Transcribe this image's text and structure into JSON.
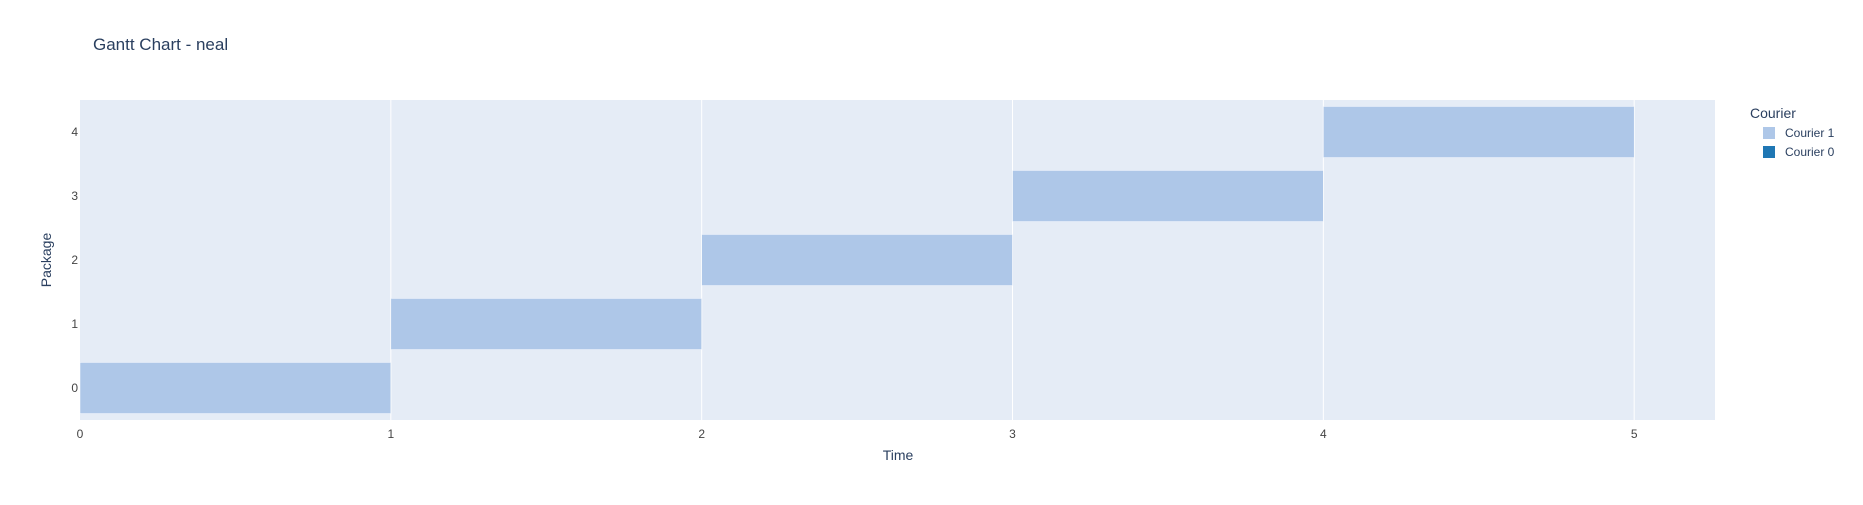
{
  "chart_data": {
    "type": "bar",
    "orientation": "horizontal",
    "title": "Gantt Chart - neal",
    "xlabel": "Time",
    "ylabel": "Package",
    "xlim": [
      0,
      5.26
    ],
    "ylim": [
      -0.5,
      4.5
    ],
    "x_ticks": [
      0,
      1,
      2,
      3,
      4,
      5
    ],
    "y_ticks": [
      0,
      1,
      2,
      3,
      4
    ],
    "grid": true,
    "legend": {
      "title": "Courier",
      "placement": "right",
      "entries": [
        {
          "name": "Courier 1",
          "color": "#aec7e8"
        },
        {
          "name": "Courier 0",
          "color": "#1f77b4"
        }
      ]
    },
    "series": [
      {
        "name": "Courier 1",
        "color": "#aec7e8",
        "tasks": [
          {
            "package": 0,
            "start": 0,
            "end": 1
          },
          {
            "package": 1,
            "start": 1,
            "end": 2
          },
          {
            "package": 2,
            "start": 2,
            "end": 3
          },
          {
            "package": 3,
            "start": 3,
            "end": 4
          },
          {
            "package": 4,
            "start": 4,
            "end": 5
          }
        ]
      },
      {
        "name": "Courier 0",
        "color": "#1f77b4",
        "tasks": []
      }
    ],
    "colors": {
      "plot_bg": "#e5ecf6",
      "grid": "#ffffff",
      "text": "#2a3f5f",
      "tick_text": "#444444"
    }
  }
}
